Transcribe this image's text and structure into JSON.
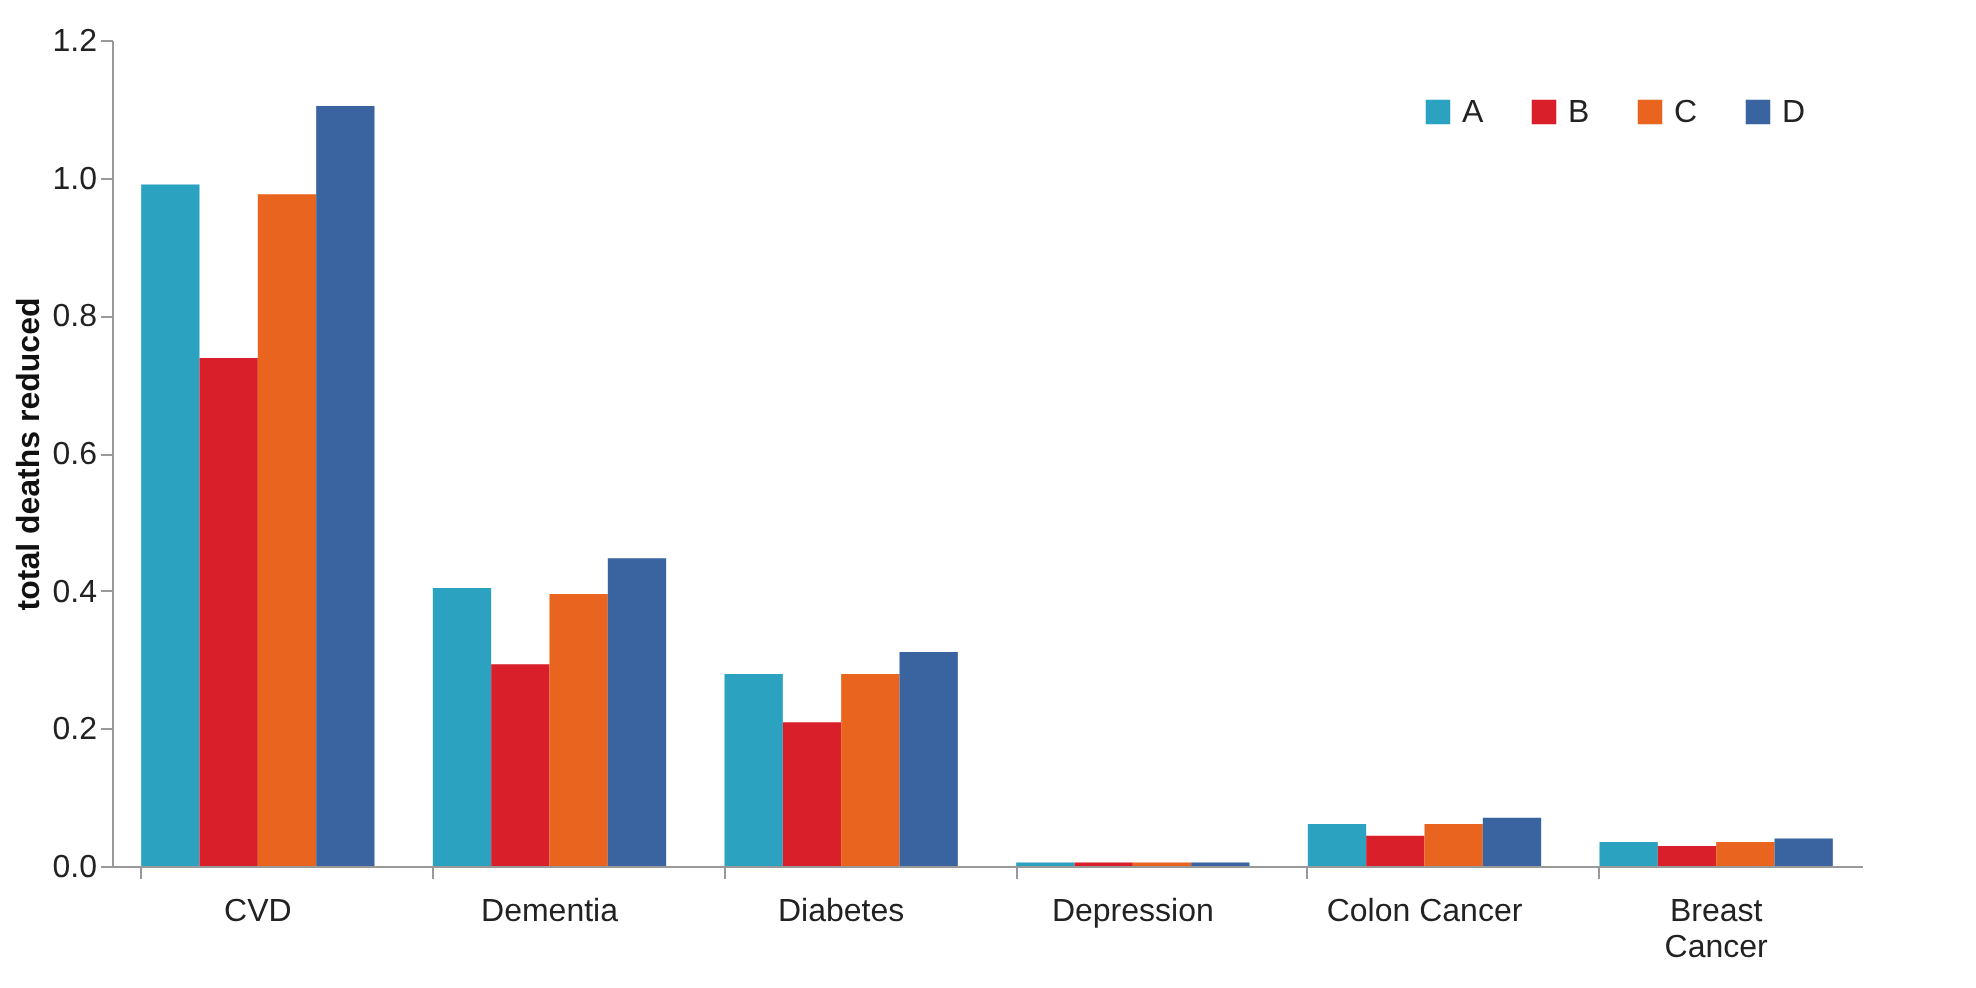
{
  "chart_data": {
    "type": "bar",
    "ylabel": "total deaths reduced",
    "categories": [
      "CVD",
      "Dementia",
      "Diabetes",
      "Depression",
      "Colon Cancer",
      "Breast Cancer"
    ],
    "series": [
      {
        "name": "A",
        "color": "#2ba3c0",
        "values": [
          0.99,
          0.404,
          0.279,
          0.005,
          0.061,
          0.035
        ]
      },
      {
        "name": "B",
        "color": "#d9202a",
        "values": [
          0.738,
          0.293,
          0.209,
          0.005,
          0.044,
          0.029
        ]
      },
      {
        "name": "C",
        "color": "#e8641f",
        "values": [
          0.976,
          0.395,
          0.279,
          0.005,
          0.061,
          0.035
        ]
      },
      {
        "name": "D",
        "color": "#3a64a0",
        "values": [
          1.104,
          0.447,
          0.311,
          0.005,
          0.07,
          0.04
        ]
      }
    ],
    "ylim": [
      0,
      1.2
    ],
    "yticks": [
      {
        "value": 0,
        "label": "0.0"
      },
      0.2,
      0.4,
      0.6,
      0.8,
      {
        "value": 1,
        "label": "1.0"
      },
      1.2
    ],
    "grid": false,
    "legend": "top right"
  }
}
